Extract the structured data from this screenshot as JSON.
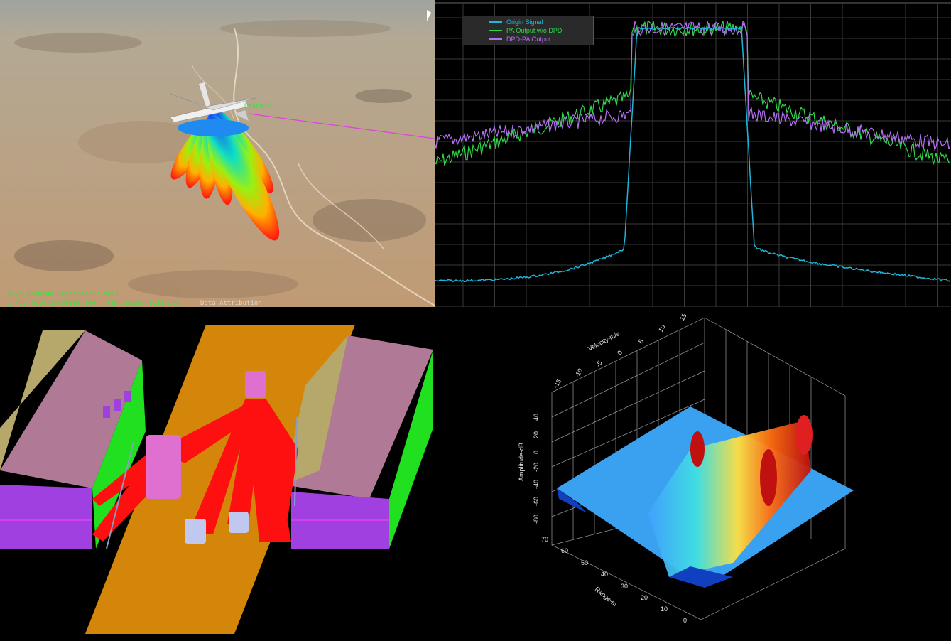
{
  "terrain_view": {
    "label_tx": "DroneTx",
    "axes_label": "Keys_DroneRx Topocentric Axes",
    "date_text": "1 Nov 2019 14:00:00.000",
    "time_step": "Time Step: 0.10 sec",
    "attribution": "Data Attribution"
  },
  "spectrum_plot": {
    "legend": [
      {
        "name": "Origin Signal",
        "color": "#1fb6d8"
      },
      {
        "name": "PA Output w/o DPD",
        "color": "#2fd84a"
      },
      {
        "name": "DPD-PA Output",
        "color": "#b070f0"
      }
    ]
  },
  "radar_plot": {
    "velocity_label": "Velocity-m/s",
    "velocity_ticks": [
      "-15",
      "-10",
      "-5",
      "0",
      "5",
      "10",
      "15"
    ],
    "amplitude_label": "Amplitude-dB",
    "amplitude_ticks": [
      "40",
      "20",
      "0",
      "-20",
      "-40",
      "-60",
      "-80"
    ],
    "range_label": "Range-m",
    "range_ticks": [
      "70",
      "60",
      "50",
      "40",
      "30",
      "20",
      "10",
      "0"
    ]
  },
  "colors": {
    "building_roof_left": "#b6a86a",
    "building_roof_right": "#b07a96",
    "building_side": "#20e020",
    "building_base": "#a040e0",
    "road": "#d4860a",
    "rays": "#ff1010"
  }
}
